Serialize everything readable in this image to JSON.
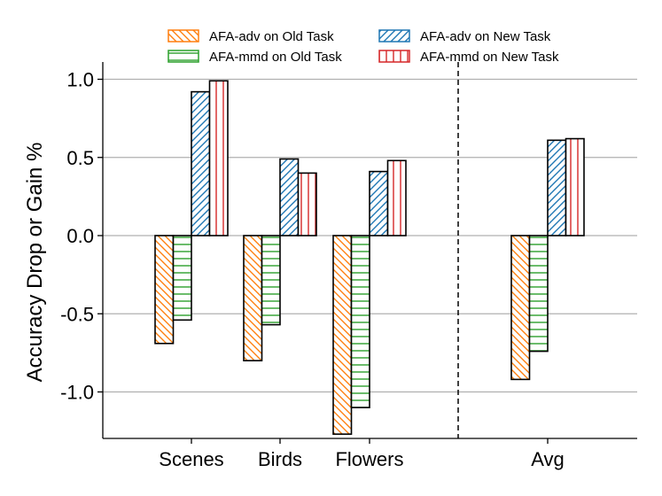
{
  "chart_data": {
    "type": "bar",
    "title": "",
    "xlabel": "",
    "ylabel": "Accuracy Drop or Gain %",
    "categories": [
      "Scenes",
      "Birds",
      "Flowers",
      "Avg"
    ],
    "series": [
      {
        "name": "AFA-adv on Old Task",
        "values": [
          -0.69,
          -0.8,
          -1.27,
          -0.92
        ],
        "color": "#ff7f0e",
        "hatch": "diagonal-backslash"
      },
      {
        "name": "AFA-mmd on Old Task",
        "values": [
          -0.54,
          -0.57,
          -1.1,
          -0.74
        ],
        "color": "#2ca02c",
        "hatch": "horizontal"
      },
      {
        "name": "AFA-adv on New Task",
        "values": [
          0.92,
          0.49,
          0.41,
          0.61
        ],
        "color": "#1f77b4",
        "hatch": "diagonal-slash"
      },
      {
        "name": "AFA-mmd on New Task",
        "values": [
          0.99,
          0.4,
          0.48,
          0.62
        ],
        "color": "#d62728",
        "hatch": "vertical"
      }
    ],
    "ylim": [
      -1.3,
      1.1
    ],
    "yticks": [
      1.0,
      0.5,
      0.0,
      -0.5,
      -1.0
    ],
    "ytick_labels": [
      "1.0",
      "0.5",
      "0.0",
      "-0.5",
      "-1.0"
    ],
    "grid": "horizontal",
    "separator_after_category": "Flowers",
    "legend_position": "top"
  }
}
